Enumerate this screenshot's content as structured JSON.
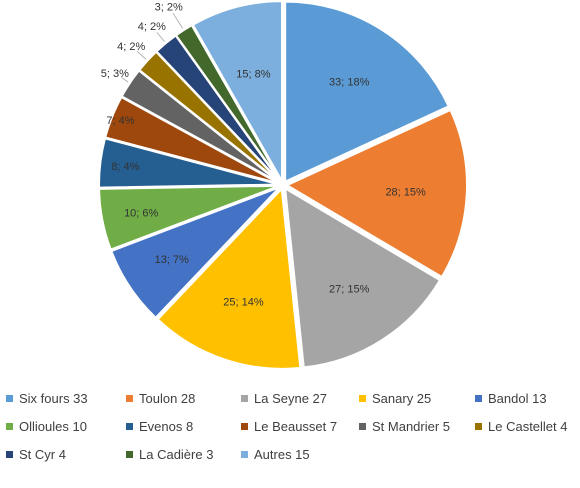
{
  "chart_data": {
    "type": "pie",
    "title": "",
    "categories": [
      "Six fours",
      "Toulon",
      "La Seyne",
      "Sanary",
      "Bandol",
      "Ollioules",
      "Evenos",
      "Le Beausset",
      "St Mandrier",
      "Le Castellet",
      "St Cyr",
      "La Cadière",
      "Autres"
    ],
    "values": [
      33,
      28,
      27,
      25,
      13,
      10,
      8,
      7,
      5,
      4,
      4,
      3,
      15
    ],
    "percent_labels": [
      "33; 18%",
      "28; 15%",
      "27; 15%",
      "25; 14%",
      "13; 7%",
      "10; 6%",
      "8; 4%",
      "7; 4%",
      "5; 3%",
      "4; 2%",
      "4; 2%",
      "3; 2%",
      "15; 8%"
    ],
    "colors": [
      "#5B9BD5",
      "#ED7D31",
      "#A5A5A5",
      "#FFC000",
      "#4472C4",
      "#70AD47",
      "#255E91",
      "#9E480E",
      "#636363",
      "#997300",
      "#264478",
      "#43682B",
      "#7CAFDD"
    ],
    "legend_labels": [
      "Six fours 33",
      "Toulon 28",
      "La Seyne 27",
      "Sanary 25",
      "Bandol 13",
      "Ollioules 10",
      "Evenos 8",
      "Le Beausset 7",
      "St Mandrier 5",
      "Le Castellet 4",
      "St Cyr 4",
      "La Cadière 3",
      "Autres 15"
    ],
    "legend_position": "bottom"
  }
}
